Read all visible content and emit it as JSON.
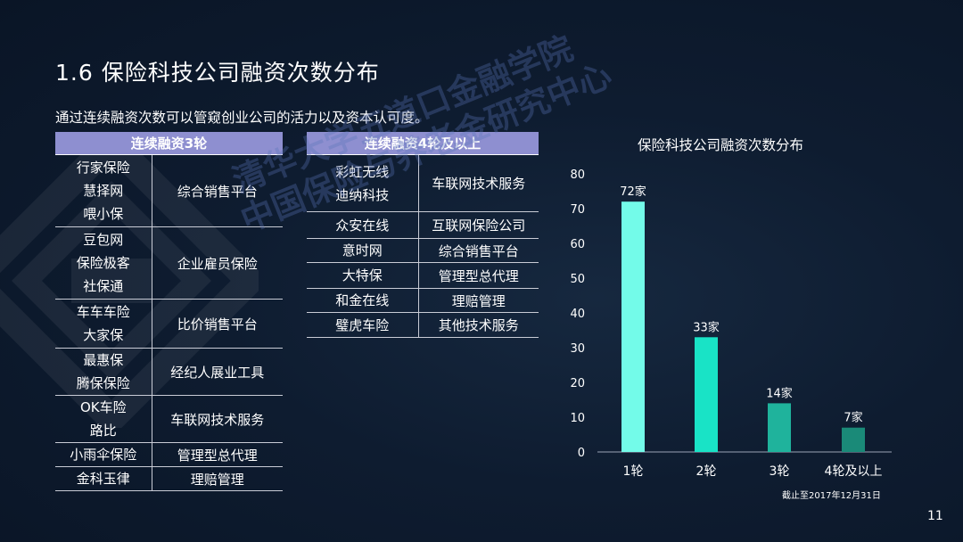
{
  "title": "1.6 保险科技公司融资次数分布",
  "subtitle": "通过连续融资次数可以管窥创业公司的活力以及资本认可度。",
  "table1": {
    "header": "连续融资3轮",
    "rows": [
      {
        "names": [
          "行家保险",
          "慧择网",
          "喂小保"
        ],
        "category": "综合销售平台"
      },
      {
        "names": [
          "豆包网",
          "保险极客",
          "社保通"
        ],
        "category": "企业雇员保险"
      },
      {
        "names": [
          "车车车险",
          "大家保"
        ],
        "category": "比价销售平台"
      },
      {
        "names": [
          "最惠保",
          "腾保保险"
        ],
        "category": "经纪人展业工具"
      },
      {
        "names": [
          "OK车险",
          "路比"
        ],
        "category": "车联网技术服务"
      },
      {
        "names": [
          "小雨伞保险"
        ],
        "category": "管理型总代理"
      },
      {
        "names": [
          "金科玉律"
        ],
        "category": "理赔管理"
      }
    ]
  },
  "table2": {
    "header": "连续融资4轮及以上",
    "rows": [
      {
        "names": [
          "彩虹无线",
          "迪纳科技"
        ],
        "category": "车联网技术服务"
      },
      {
        "names": [
          "众安在线"
        ],
        "category": "互联网保险公司"
      },
      {
        "names": [
          "意时网"
        ],
        "category": "综合销售平台"
      },
      {
        "names": [
          "大特保"
        ],
        "category": "管理型总代理"
      },
      {
        "names": [
          "和金在线"
        ],
        "category": "理赔管理"
      },
      {
        "names": [
          "璧虎车险"
        ],
        "category": "其他技术服务"
      }
    ]
  },
  "watermark": {
    "line1": "清华大学五道口金融学院",
    "line2": "中国保险与养老金研究中心"
  },
  "chart_data": {
    "type": "bar",
    "title": "保险科技公司融资次数分布",
    "categories": [
      "1轮",
      "2轮",
      "3轮",
      "4轮及以上"
    ],
    "values": [
      72,
      33,
      14,
      7
    ],
    "data_labels": [
      "72家",
      "33家",
      "14家",
      "7家"
    ],
    "colors": [
      "#73fbe9",
      "#19e3c6",
      "#1fb39c",
      "#1a8a78"
    ],
    "ylim": [
      0,
      80
    ],
    "yticks": [
      0,
      10,
      20,
      30,
      40,
      50,
      60,
      70,
      80
    ],
    "grid": false,
    "legend": "none"
  },
  "footnote": "截止至2017年12月31日",
  "page_number": "11"
}
